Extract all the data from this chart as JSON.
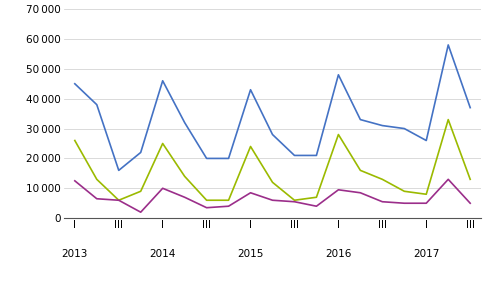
{
  "year_labels": [
    "2013",
    "2014",
    "2015",
    "2016",
    "2017"
  ],
  "year_positions": [
    0,
    4,
    8,
    12,
    16
  ],
  "quarter_show_positions": [
    0,
    2,
    4,
    6,
    8,
    10,
    12,
    14,
    16,
    18
  ],
  "quarter_show_labels": [
    "I",
    "III",
    "I",
    "III",
    "I",
    "III",
    "I",
    "III",
    "I",
    "III"
  ],
  "total": [
    45000,
    38000,
    16000,
    22000,
    46000,
    32000,
    20000,
    20000,
    43000,
    28000,
    21000,
    21000,
    48000,
    33000,
    31000,
    30000,
    26000,
    58000,
    37000
  ],
  "viss_tid": [
    26000,
    13000,
    6000,
    9000,
    25000,
    14000,
    6000,
    6000,
    24000,
    12000,
    6000,
    7000,
    28000,
    16000,
    13000,
    9000,
    8000,
    33000,
    13000
  ],
  "deltid": [
    12500,
    6500,
    6000,
    2000,
    10000,
    7000,
    3500,
    4000,
    8500,
    6000,
    5500,
    4000,
    9500,
    8500,
    5500,
    5000,
    5000,
    13000,
    5000
  ],
  "color_total": "#4472c4",
  "color_viss": "#9bba00",
  "color_deltid": "#9b2e8a",
  "ylim": [
    0,
    70000
  ],
  "yticks": [
    0,
    10000,
    20000,
    30000,
    40000,
    50000,
    60000,
    70000
  ],
  "background_color": "#ffffff",
  "grid_color": "#cccccc",
  "xlim": [
    -0.5,
    18.5
  ]
}
